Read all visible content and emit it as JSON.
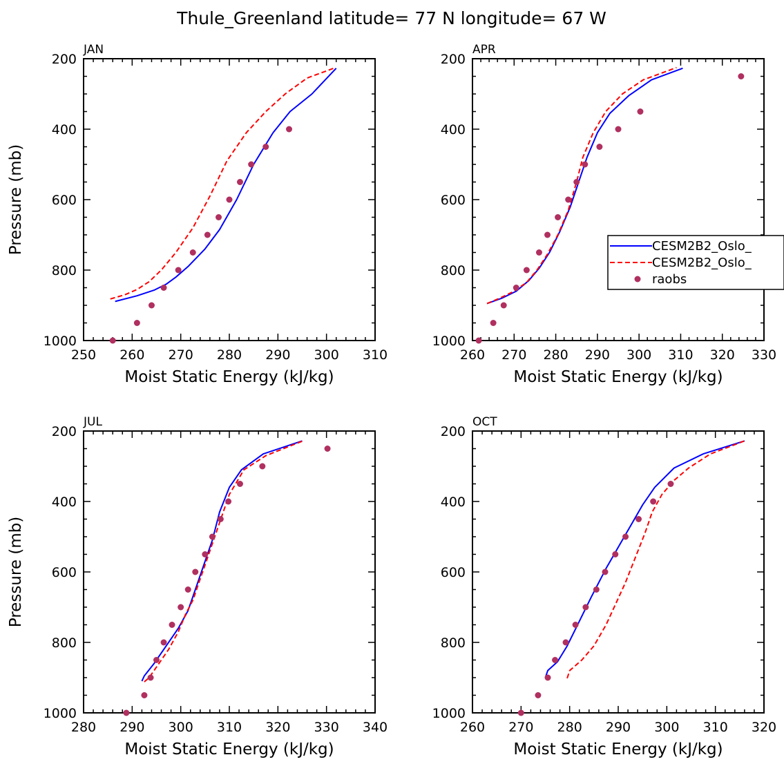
{
  "title": "Thule_Greenland  latitude= 77 N longitude= 67 W",
  "legend": {
    "placement": "right-middle of APR panel",
    "entries": [
      {
        "label": "CESM2B2_Oslo_",
        "style": "solid",
        "color": "#0000ff"
      },
      {
        "label": "CESM2B2_Oslo_",
        "style": "dashed",
        "color": "#ff0000"
      },
      {
        "label": "raobs",
        "style": "marker",
        "color": "#b03060"
      }
    ]
  },
  "chart_data": [
    {
      "type": "line",
      "panel": "JAN",
      "xlabel": "Moist Static Energy (kJ/kg)",
      "ylabel": "Pressure (mb)",
      "xlim": [
        250,
        310
      ],
      "xticks": [
        250,
        260,
        270,
        280,
        290,
        300,
        310
      ],
      "ylim": [
        1000,
        200
      ],
      "yticks": [
        200,
        400,
        600,
        800,
        1000
      ],
      "series": [
        {
          "name": "CESM2B2_Oslo_ (solid)",
          "color": "#0000ff",
          "style": "solid",
          "x": [
            256.5,
            261,
            264.5,
            267,
            269,
            271.5,
            275,
            278,
            281.5,
            285,
            289,
            292.5,
            297,
            302
          ],
          "y": [
            889,
            873,
            857,
            840,
            820,
            790,
            740,
            685,
            600,
            500,
            410,
            350,
            300,
            227
          ]
        },
        {
          "name": "CESM2B2_Oslo_ (dashed)",
          "color": "#ff0000",
          "style": "dashed",
          "x": [
            255.5,
            258.5,
            261,
            263.5,
            266,
            269,
            272.5,
            276,
            279.5,
            283.5,
            287.5,
            291.5,
            296,
            301.5
          ],
          "y": [
            882,
            870,
            855,
            833,
            800,
            750,
            680,
            590,
            490,
            410,
            350,
            300,
            255,
            227
          ]
        },
        {
          "name": "raobs",
          "color": "#b03060",
          "style": "marker",
          "x": [
            256,
            261,
            264,
            266.5,
            269.5,
            272.5,
            275.5,
            277.8,
            280,
            282.2,
            284.5,
            287.5,
            292.3
          ],
          "y": [
            1000,
            950,
            900,
            850,
            800,
            750,
            700,
            650,
            600,
            550,
            500,
            450,
            400
          ]
        }
      ]
    },
    {
      "type": "line",
      "panel": "APR",
      "xlabel": "Moist Static Energy (kJ/kg)",
      "ylabel": "",
      "xlim": [
        260,
        330
      ],
      "xticks": [
        260,
        270,
        280,
        290,
        300,
        310,
        320,
        330
      ],
      "ylim": [
        1000,
        200
      ],
      "yticks": [
        200,
        400,
        600,
        800,
        1000
      ],
      "series": [
        {
          "name": "CESM2B2_Oslo_ (solid)",
          "color": "#0000ff",
          "style": "solid",
          "x": [
            263.5,
            267,
            270.5,
            273.5,
            276,
            278.5,
            281,
            283.5,
            285.5,
            287.5,
            290,
            293,
            297.5,
            303,
            310.5
          ],
          "y": [
            895,
            880,
            860,
            830,
            795,
            750,
            690,
            620,
            550,
            480,
            410,
            355,
            305,
            260,
            227
          ]
        },
        {
          "name": "CESM2B2_Oslo_ (dashed)",
          "color": "#ff0000",
          "style": "dashed",
          "x": [
            263.5,
            266.5,
            270,
            273,
            275.5,
            278,
            280.5,
            283,
            285,
            286.5,
            289,
            292,
            296,
            301,
            309
          ],
          "y": [
            895,
            880,
            860,
            835,
            800,
            755,
            700,
            630,
            550,
            480,
            410,
            350,
            300,
            260,
            225
          ]
        },
        {
          "name": "raobs",
          "color": "#b03060",
          "style": "marker",
          "x": [
            261.5,
            265,
            267.5,
            270.5,
            273,
            276,
            278,
            280.5,
            283,
            285,
            287,
            290.5,
            295,
            300.3,
            324.5
          ],
          "y": [
            1000,
            950,
            900,
            850,
            800,
            750,
            700,
            650,
            600,
            550,
            500,
            450,
            400,
            350,
            250
          ]
        }
      ]
    },
    {
      "type": "line",
      "panel": "JUL",
      "xlabel": "Moist Static Energy (kJ/kg)",
      "ylabel": "Pressure (mb)",
      "xlim": [
        280,
        340
      ],
      "xticks": [
        280,
        290,
        300,
        310,
        320,
        330,
        340
      ],
      "ylim": [
        1000,
        200
      ],
      "yticks": [
        200,
        400,
        600,
        800,
        1000
      ],
      "series": [
        {
          "name": "CESM2B2_Oslo_ (solid)",
          "color": "#0000ff",
          "style": "solid",
          "x": [
            292,
            292.5,
            294.5,
            297,
            299.5,
            301.5,
            303,
            304.5,
            306.5,
            308,
            310,
            312.5,
            317,
            325
          ],
          "y": [
            910,
            895,
            860,
            810,
            760,
            710,
            650,
            590,
            510,
            430,
            360,
            310,
            265,
            228
          ]
        },
        {
          "name": "CESM2B2_Oslo_ (dashed)",
          "color": "#ff0000",
          "style": "dashed",
          "x": [
            292.5,
            293.5,
            295,
            297.5,
            299.5,
            301,
            302.5,
            304,
            305.5,
            307,
            308.5,
            310,
            313,
            317.5,
            325.5
          ],
          "y": [
            912,
            900,
            870,
            820,
            770,
            720,
            680,
            620,
            560,
            500,
            440,
            380,
            310,
            270,
            226
          ]
        },
        {
          "name": "raobs",
          "color": "#b03060",
          "style": "marker",
          "x": [
            288.8,
            292.5,
            293.8,
            295,
            296.5,
            298.2,
            300,
            301.5,
            303,
            305,
            306.5,
            308.2,
            309.8,
            312.2,
            316.8,
            330.2
          ],
          "y": [
            1000,
            950,
            900,
            850,
            800,
            750,
            700,
            650,
            600,
            550,
            500,
            450,
            400,
            350,
            300,
            250
          ]
        }
      ]
    },
    {
      "type": "line",
      "panel": "OCT",
      "xlabel": "Moist Static Energy (kJ/kg)",
      "ylabel": "",
      "xlim": [
        260,
        320
      ],
      "xticks": [
        260,
        270,
        280,
        290,
        300,
        310,
        320
      ],
      "ylim": [
        1000,
        200
      ],
      "yticks": [
        200,
        400,
        600,
        800,
        1000
      ],
      "series": [
        {
          "name": "CESM2B2_Oslo_ (solid)",
          "color": "#0000ff",
          "style": "solid",
          "x": [
            275,
            275.5,
            277.5,
            279.5,
            282,
            284.5,
            287.5,
            290,
            292.5,
            295,
            297.5,
            301.5,
            307.5,
            316
          ],
          "y": [
            900,
            880,
            855,
            810,
            740,
            670,
            590,
            530,
            470,
            410,
            360,
            305,
            265,
            228
          ]
        },
        {
          "name": "CESM2B2_Oslo_ (dashed)",
          "color": "#ff0000",
          "style": "dashed",
          "x": [
            279.5,
            280,
            282.5,
            285,
            287.5,
            289.5,
            291.5,
            293.5,
            295.5,
            297,
            299,
            301.5,
            304.5,
            309,
            316
          ],
          "y": [
            902,
            880,
            850,
            810,
            750,
            690,
            630,
            560,
            490,
            430,
            380,
            340,
            305,
            265,
            228
          ]
        },
        {
          "name": "raobs",
          "color": "#b03060",
          "style": "marker",
          "x": [
            270,
            273.5,
            275.5,
            277,
            279.2,
            281.2,
            283.3,
            285.5,
            287.3,
            289.4,
            291.5,
            294.2,
            297.2,
            300.8
          ],
          "y": [
            1000,
            950,
            900,
            850,
            800,
            750,
            700,
            650,
            600,
            550,
            500,
            450,
            400,
            350
          ]
        }
      ]
    }
  ]
}
